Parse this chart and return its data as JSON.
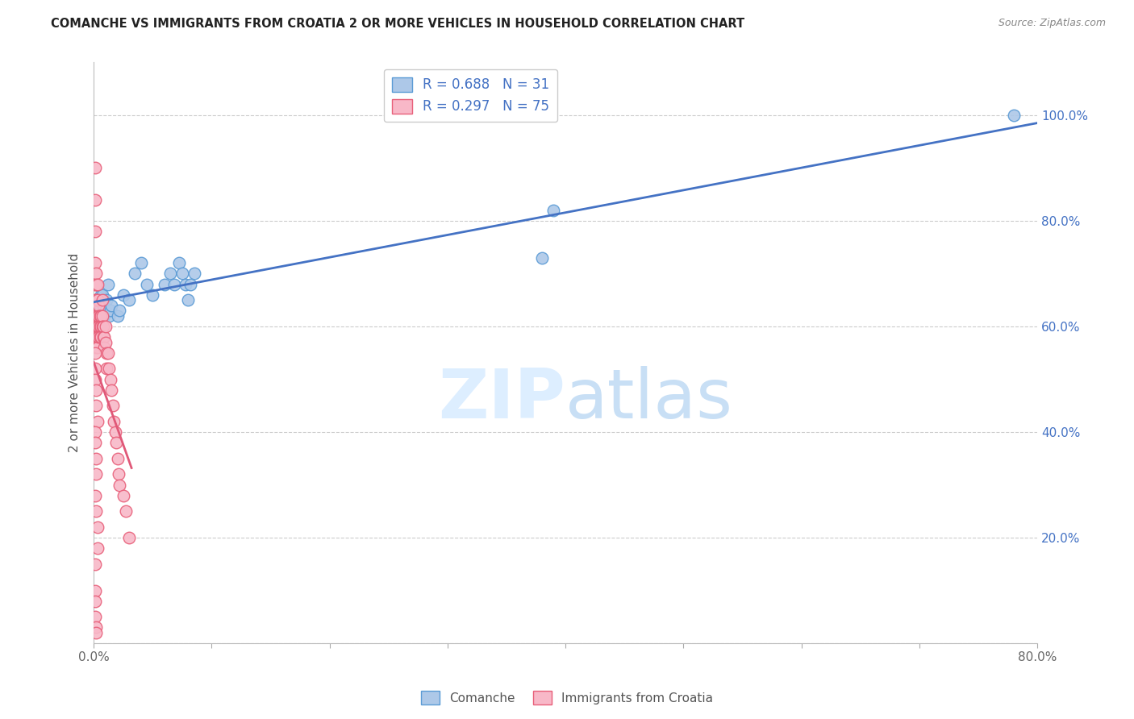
{
  "title": "COMANCHE VS IMMIGRANTS FROM CROATIA 2 OR MORE VEHICLES IN HOUSEHOLD CORRELATION CHART",
  "source": "Source: ZipAtlas.com",
  "ylabel": "2 or more Vehicles in Household",
  "xlim": [
    0.0,
    0.8
  ],
  "ylim": [
    0.0,
    1.1
  ],
  "x_ticks": [
    0.0,
    0.1,
    0.2,
    0.3,
    0.4,
    0.5,
    0.6,
    0.7,
    0.8
  ],
  "x_tick_labels": [
    "0.0%",
    "",
    "",
    "",
    "",
    "",
    "",
    "",
    "80.0%"
  ],
  "y_ticks": [
    0.0,
    0.2,
    0.4,
    0.6,
    0.8,
    1.0
  ],
  "y_right_labels": [
    "",
    "20.0%",
    "40.0%",
    "60.0%",
    "80.0%",
    "100.0%"
  ],
  "comanche_R": 0.688,
  "comanche_N": 31,
  "croatia_R": 0.297,
  "croatia_N": 75,
  "comanche_color": "#adc8e8",
  "comanche_edge_color": "#5b9bd5",
  "comanche_line_color": "#4472c4",
  "croatia_color": "#f8b8c8",
  "croatia_edge_color": "#e8607a",
  "croatia_line_color": "#e05878",
  "watermark_color": "#ddeeff",
  "legend_text_color": "#4472c4",
  "bottom_label_color": "#555555",
  "comanche_x": [
    0.005,
    0.006,
    0.007,
    0.008,
    0.009,
    0.01,
    0.011,
    0.012,
    0.013,
    0.014,
    0.015,
    0.02,
    0.022,
    0.025,
    0.03,
    0.035,
    0.04,
    0.045,
    0.05,
    0.06,
    0.065,
    0.068,
    0.072,
    0.075,
    0.078,
    0.08,
    0.082,
    0.085,
    0.38,
    0.39,
    0.78
  ],
  "comanche_y": [
    0.64,
    0.66,
    0.66,
    0.64,
    0.62,
    0.63,
    0.65,
    0.68,
    0.62,
    0.63,
    0.64,
    0.62,
    0.63,
    0.66,
    0.65,
    0.7,
    0.72,
    0.68,
    0.66,
    0.68,
    0.7,
    0.68,
    0.72,
    0.7,
    0.68,
    0.65,
    0.68,
    0.7,
    0.73,
    0.82,
    1.0
  ],
  "croatia_x": [
    0.001,
    0.001,
    0.001,
    0.001,
    0.001,
    0.001,
    0.001,
    0.002,
    0.002,
    0.002,
    0.002,
    0.002,
    0.002,
    0.002,
    0.003,
    0.003,
    0.003,
    0.003,
    0.003,
    0.003,
    0.004,
    0.004,
    0.004,
    0.004,
    0.005,
    0.005,
    0.005,
    0.006,
    0.006,
    0.006,
    0.007,
    0.007,
    0.007,
    0.008,
    0.008,
    0.009,
    0.009,
    0.01,
    0.01,
    0.011,
    0.011,
    0.012,
    0.013,
    0.014,
    0.015,
    0.016,
    0.017,
    0.018,
    0.019,
    0.02,
    0.021,
    0.022,
    0.025,
    0.027,
    0.03,
    0.001,
    0.001,
    0.001,
    0.002,
    0.002,
    0.003,
    0.001,
    0.001,
    0.002,
    0.002,
    0.001,
    0.002,
    0.003,
    0.003,
    0.001,
    0.001,
    0.001,
    0.001,
    0.002,
    0.002
  ],
  "croatia_y": [
    0.9,
    0.84,
    0.78,
    0.72,
    0.68,
    0.65,
    0.62,
    0.7,
    0.68,
    0.65,
    0.62,
    0.6,
    0.58,
    0.56,
    0.68,
    0.65,
    0.62,
    0.6,
    0.58,
    0.56,
    0.64,
    0.62,
    0.6,
    0.58,
    0.62,
    0.6,
    0.58,
    0.62,
    0.6,
    0.58,
    0.65,
    0.62,
    0.6,
    0.6,
    0.58,
    0.58,
    0.56,
    0.6,
    0.57,
    0.55,
    0.52,
    0.55,
    0.52,
    0.5,
    0.48,
    0.45,
    0.42,
    0.4,
    0.38,
    0.35,
    0.32,
    0.3,
    0.28,
    0.25,
    0.2,
    0.55,
    0.52,
    0.5,
    0.48,
    0.45,
    0.42,
    0.4,
    0.38,
    0.35,
    0.32,
    0.28,
    0.25,
    0.22,
    0.18,
    0.15,
    0.1,
    0.08,
    0.05,
    0.03,
    0.02
  ]
}
